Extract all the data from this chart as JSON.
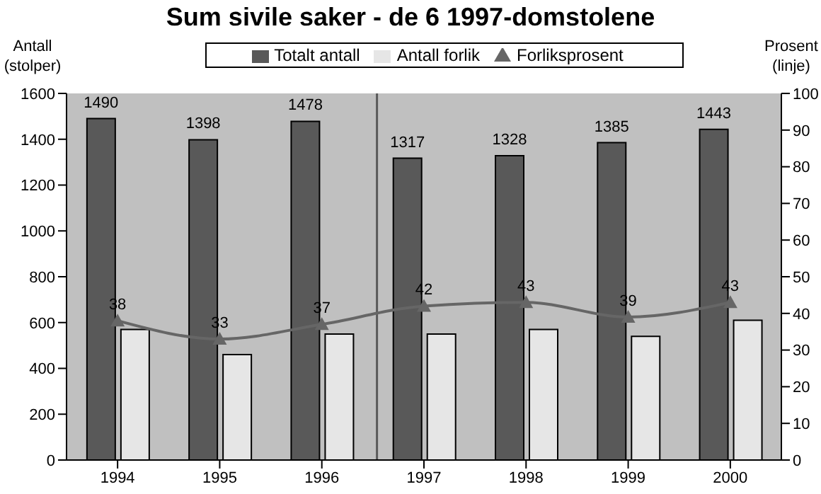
{
  "chart_data": {
    "type": "bar",
    "title": "Sum sivile saker - de 6 1997-domstolene",
    "ylabel": "Antall\n(stolper)",
    "y2label": "Prosent\n(linje)",
    "categories": [
      "1994",
      "1995",
      "1996",
      "1997",
      "1998",
      "1999",
      "2000"
    ],
    "series": [
      {
        "name": "Totalt antall",
        "color": "#595959",
        "values": [
          1490,
          1398,
          1478,
          1317,
          1328,
          1385,
          1443
        ],
        "value_labels": [
          "1490",
          "1398",
          "1478",
          "1317",
          "1328",
          "1385",
          "1443"
        ]
      },
      {
        "name": "Antall forlik",
        "color": "#e6e6e6",
        "values": [
          570,
          460,
          550,
          550,
          570,
          540,
          610
        ]
      },
      {
        "name": "Forliksprosent",
        "type": "line",
        "axis": "y2",
        "color": "#666666",
        "marker": "triangle",
        "values": [
          38,
          33,
          37,
          42,
          43,
          39,
          43
        ],
        "value_labels": [
          "38",
          "33",
          "37",
          "42",
          "43",
          "39",
          "43"
        ]
      }
    ],
    "ylim": [
      0,
      1600
    ],
    "yticks": [
      0,
      200,
      400,
      600,
      800,
      1000,
      1200,
      1400,
      1600
    ],
    "y2lim": [
      0,
      100
    ],
    "y2ticks": [
      0,
      10,
      20,
      30,
      40,
      50,
      60,
      70,
      80,
      90,
      100
    ],
    "ref_lines": [
      {
        "axis": "x",
        "value": "1997",
        "color": "#595959"
      }
    ],
    "legend": "top"
  }
}
